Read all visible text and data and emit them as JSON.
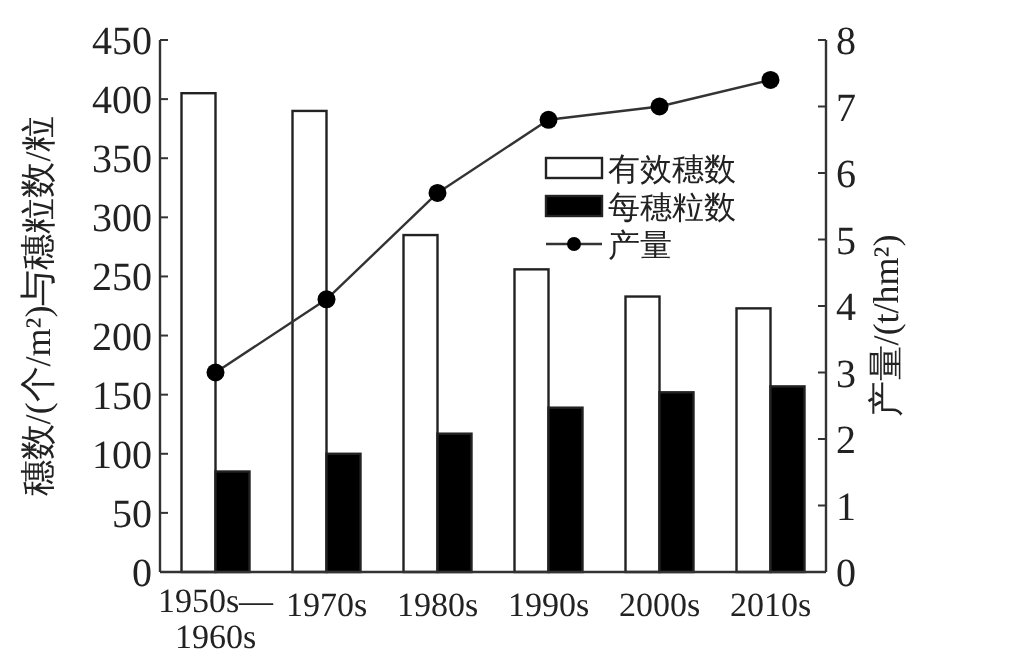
{
  "chart_data": {
    "type": "bar",
    "categories": [
      "1950s—1960s",
      "1970s",
      "1980s",
      "1990s",
      "2000s",
      "2010s"
    ],
    "series": [
      {
        "name": "有效穗数",
        "color": "#ffffff",
        "values": [
          405,
          390,
          285,
          256,
          233,
          223
        ]
      },
      {
        "name": "每穗粒数",
        "color": "#000000",
        "values": [
          85,
          100,
          117,
          139,
          152,
          157
        ]
      },
      {
        "name": "产量",
        "type": "line",
        "axis": "y2",
        "color": "#333333",
        "marker": "circle",
        "values": [
          3.0,
          4.1,
          5.7,
          6.8,
          7.0,
          7.4
        ]
      }
    ],
    "ylabel": "穗数/(个/m²)与穗粒数/粒",
    "y2label": "产量/(t/hm²)",
    "ylim": [
      0,
      450
    ],
    "yticks": [
      0,
      50,
      100,
      150,
      200,
      250,
      300,
      350,
      400,
      450
    ],
    "y2lim": [
      0,
      8
    ],
    "y2ticks": [
      0,
      1,
      2,
      3,
      4,
      5,
      6,
      7,
      8
    ],
    "legend": "top right"
  }
}
